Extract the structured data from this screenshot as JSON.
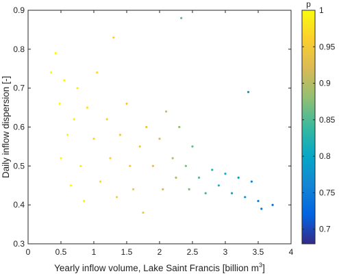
{
  "chart_data": {
    "type": "scatter",
    "title": "",
    "xlabel": "Yearly inflow volume, Lake Saint Francis [billion m",
    "xlabel_superscript": "3",
    "xlabel_suffix": "]",
    "ylabel": "Daily inflow dispersion [-]",
    "xlim": [
      0,
      4
    ],
    "ylim": [
      0.3,
      0.9
    ],
    "xticks": [
      "0",
      "0.5",
      "1",
      "1.5",
      "2",
      "2.5",
      "3",
      "3.5",
      "4"
    ],
    "yticks": [
      "0.3",
      "0.4",
      "0.5",
      "0.6",
      "0.7",
      "0.8",
      "0.9"
    ],
    "grid": false,
    "colorbar": {
      "title": "p",
      "range": [
        0.68,
        1.0
      ],
      "ticks": [
        "0.7",
        "0.75",
        "0.8",
        "0.85",
        "0.9",
        "0.95",
        "1"
      ],
      "colormap": "parula",
      "colormap_stops": [
        "#352a87",
        "#0363e1",
        "#1485d4",
        "#06a7c6",
        "#38b99e",
        "#92bf73",
        "#d9ba56",
        "#fcce2e",
        "#f9fb0e"
      ]
    },
    "points": [
      {
        "x": 0.35,
        "y": 0.74,
        "p": 1.0
      },
      {
        "x": 0.42,
        "y": 0.79,
        "p": 1.0
      },
      {
        "x": 0.48,
        "y": 0.66,
        "p": 1.0
      },
      {
        "x": 0.55,
        "y": 0.72,
        "p": 1.0
      },
      {
        "x": 0.6,
        "y": 0.58,
        "p": 1.0
      },
      {
        "x": 0.5,
        "y": 0.52,
        "p": 1.0
      },
      {
        "x": 0.65,
        "y": 0.45,
        "p": 1.0
      },
      {
        "x": 0.7,
        "y": 0.62,
        "p": 0.99
      },
      {
        "x": 0.75,
        "y": 0.7,
        "p": 0.99
      },
      {
        "x": 0.8,
        "y": 0.5,
        "p": 0.99
      },
      {
        "x": 0.85,
        "y": 0.41,
        "p": 0.99
      },
      {
        "x": 0.9,
        "y": 0.65,
        "p": 0.98
      },
      {
        "x": 1.0,
        "y": 0.57,
        "p": 0.97
      },
      {
        "x": 1.05,
        "y": 0.74,
        "p": 0.97
      },
      {
        "x": 1.1,
        "y": 0.46,
        "p": 0.97
      },
      {
        "x": 1.2,
        "y": 0.62,
        "p": 0.96
      },
      {
        "x": 1.25,
        "y": 0.52,
        "p": 0.96
      },
      {
        "x": 1.3,
        "y": 0.83,
        "p": 0.96
      },
      {
        "x": 1.35,
        "y": 0.42,
        "p": 0.96
      },
      {
        "x": 1.4,
        "y": 0.58,
        "p": 0.95
      },
      {
        "x": 1.5,
        "y": 0.66,
        "p": 0.95
      },
      {
        "x": 1.55,
        "y": 0.5,
        "p": 0.95
      },
      {
        "x": 1.6,
        "y": 0.44,
        "p": 0.95
      },
      {
        "x": 1.7,
        "y": 0.55,
        "p": 0.95
      },
      {
        "x": 1.75,
        "y": 0.38,
        "p": 0.95
      },
      {
        "x": 1.8,
        "y": 0.6,
        "p": 0.94
      },
      {
        "x": 1.9,
        "y": 0.5,
        "p": 0.93
      },
      {
        "x": 2.0,
        "y": 0.57,
        "p": 0.92
      },
      {
        "x": 2.05,
        "y": 0.44,
        "p": 0.92
      },
      {
        "x": 2.1,
        "y": 0.64,
        "p": 0.91
      },
      {
        "x": 2.2,
        "y": 0.52,
        "p": 0.9
      },
      {
        "x": 2.25,
        "y": 0.47,
        "p": 0.89
      },
      {
        "x": 2.3,
        "y": 0.6,
        "p": 0.88
      },
      {
        "x": 2.33,
        "y": 0.88,
        "p": 0.86
      },
      {
        "x": 2.4,
        "y": 0.5,
        "p": 0.87
      },
      {
        "x": 2.45,
        "y": 0.44,
        "p": 0.87
      },
      {
        "x": 2.5,
        "y": 0.55,
        "p": 0.86
      },
      {
        "x": 2.6,
        "y": 0.47,
        "p": 0.85
      },
      {
        "x": 2.7,
        "y": 0.43,
        "p": 0.84
      },
      {
        "x": 2.8,
        "y": 0.49,
        "p": 0.83
      },
      {
        "x": 2.9,
        "y": 0.45,
        "p": 0.82
      },
      {
        "x": 3.0,
        "y": 0.48,
        "p": 0.81
      },
      {
        "x": 3.1,
        "y": 0.43,
        "p": 0.8
      },
      {
        "x": 3.2,
        "y": 0.47,
        "p": 0.79
      },
      {
        "x": 3.3,
        "y": 0.42,
        "p": 0.77
      },
      {
        "x": 3.35,
        "y": 0.69,
        "p": 0.78
      },
      {
        "x": 3.4,
        "y": 0.46,
        "p": 0.76
      },
      {
        "x": 3.5,
        "y": 0.41,
        "p": 0.75
      },
      {
        "x": 3.55,
        "y": 0.39,
        "p": 0.74
      },
      {
        "x": 3.72,
        "y": 0.4,
        "p": 0.73
      }
    ]
  }
}
